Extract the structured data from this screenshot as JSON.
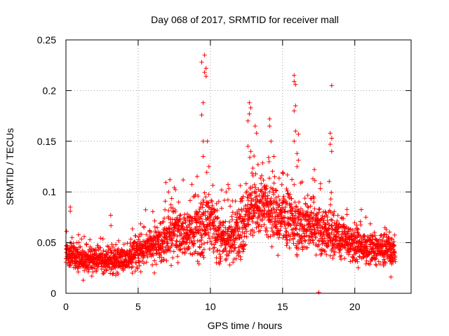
{
  "chart_data": {
    "type": "scatter",
    "title": "Day 068 of 2017, SRMTID for receiver mall",
    "xlabel": "GPS time / hours",
    "ylabel": "SRMTID / TECUs",
    "xlim": [
      0,
      23.9
    ],
    "ylim": [
      0,
      0.25
    ],
    "grid": true,
    "marker": "+",
    "color": "#ff0000",
    "x_ticks": [
      0,
      5,
      10,
      15,
      20
    ],
    "x_tick_labels": [
      "0",
      "5",
      "10",
      "15",
      "20"
    ],
    "y_ticks": [
      0,
      0.05,
      0.1,
      0.15,
      0.2,
      0.25
    ],
    "y_tick_labels": [
      "0",
      "0.05",
      "0.1",
      "0.15",
      "0.2",
      "0.25"
    ],
    "x_range": [
      0.0,
      22.8
    ],
    "profile": {
      "hours": [
        0,
        1,
        2,
        3,
        4,
        5,
        6,
        7,
        8,
        9,
        9.6,
        10,
        11,
        12,
        13,
        14,
        15,
        16,
        17,
        18,
        19,
        20,
        21,
        22,
        22.8
      ],
      "baseline": [
        0.04,
        0.035,
        0.032,
        0.033,
        0.033,
        0.04,
        0.047,
        0.055,
        0.06,
        0.062,
        0.068,
        0.065,
        0.055,
        0.06,
        0.085,
        0.085,
        0.075,
        0.068,
        0.065,
        0.06,
        0.055,
        0.05,
        0.045,
        0.042,
        0.04
      ],
      "spread": [
        0.012,
        0.011,
        0.01,
        0.01,
        0.01,
        0.012,
        0.015,
        0.017,
        0.018,
        0.022,
        0.03,
        0.022,
        0.018,
        0.022,
        0.025,
        0.025,
        0.024,
        0.022,
        0.02,
        0.02,
        0.017,
        0.015,
        0.014,
        0.013,
        0.012
      ]
    },
    "notable_points": [
      {
        "x": 9.6,
        "y": 0.235
      },
      {
        "x": 9.4,
        "y": 0.228
      },
      {
        "x": 9.7,
        "y": 0.222
      },
      {
        "x": 9.6,
        "y": 0.218
      },
      {
        "x": 9.7,
        "y": 0.214
      },
      {
        "x": 9.5,
        "y": 0.188
      },
      {
        "x": 9.4,
        "y": 0.176
      },
      {
        "x": 9.5,
        "y": 0.15
      },
      {
        "x": 9.8,
        "y": 0.15
      },
      {
        "x": 9.5,
        "y": 0.135
      },
      {
        "x": 9.9,
        "y": 0.125
      },
      {
        "x": 12.7,
        "y": 0.188
      },
      {
        "x": 12.8,
        "y": 0.183
      },
      {
        "x": 12.7,
        "y": 0.177
      },
      {
        "x": 12.6,
        "y": 0.17
      },
      {
        "x": 13.1,
        "y": 0.165
      },
      {
        "x": 13.2,
        "y": 0.158
      },
      {
        "x": 12.6,
        "y": 0.145
      },
      {
        "x": 12.8,
        "y": 0.14
      },
      {
        "x": 14.1,
        "y": 0.172
      },
      {
        "x": 14.1,
        "y": 0.165
      },
      {
        "x": 14.2,
        "y": 0.15
      },
      {
        "x": 14.4,
        "y": 0.135
      },
      {
        "x": 15.8,
        "y": 0.215
      },
      {
        "x": 15.8,
        "y": 0.209
      },
      {
        "x": 15.9,
        "y": 0.206
      },
      {
        "x": 15.9,
        "y": 0.185
      },
      {
        "x": 15.8,
        "y": 0.18
      },
      {
        "x": 15.9,
        "y": 0.16
      },
      {
        "x": 16.1,
        "y": 0.157
      },
      {
        "x": 15.8,
        "y": 0.15
      },
      {
        "x": 16.0,
        "y": 0.138
      },
      {
        "x": 16.0,
        "y": 0.125
      },
      {
        "x": 18.4,
        "y": 0.205
      },
      {
        "x": 18.3,
        "y": 0.158
      },
      {
        "x": 18.4,
        "y": 0.153
      },
      {
        "x": 18.3,
        "y": 0.147
      },
      {
        "x": 18.4,
        "y": 0.14
      },
      {
        "x": 17.2,
        "y": 0.122
      },
      {
        "x": 17.1,
        "y": 0.113
      },
      {
        "x": 7.2,
        "y": 0.112
      },
      {
        "x": 7.1,
        "y": 0.1
      },
      {
        "x": 3.1,
        "y": 0.077
      },
      {
        "x": 0.3,
        "y": 0.085
      },
      {
        "x": 0.3,
        "y": 0.081
      },
      {
        "x": 17.5,
        "y": 0.001
      },
      {
        "x": 1.2,
        "y": 0.013
      },
      {
        "x": 22.5,
        "y": 0.016
      }
    ]
  }
}
